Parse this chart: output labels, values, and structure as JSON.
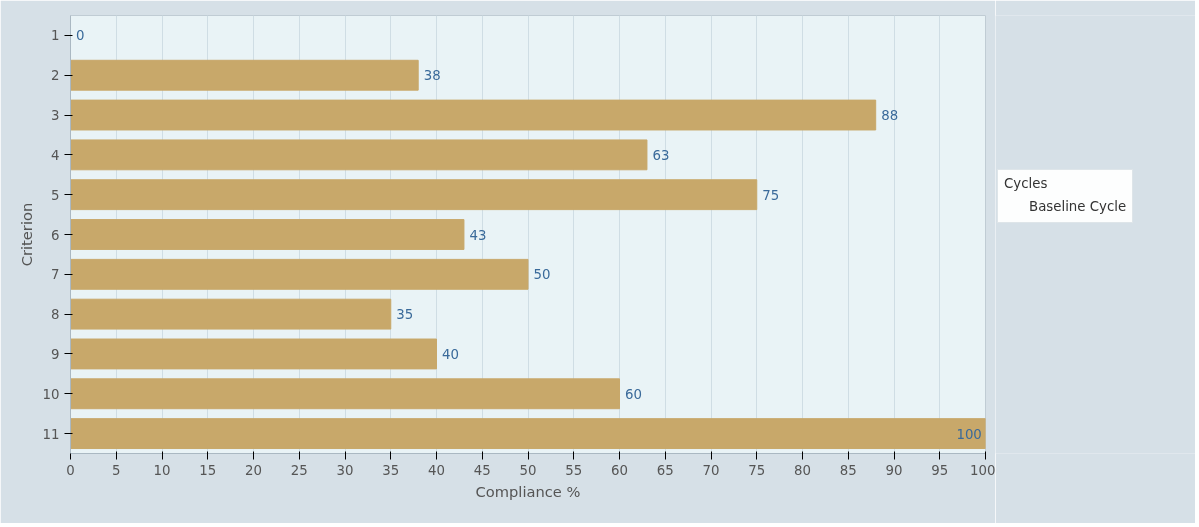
{
  "chart_data": {
    "type": "bar",
    "orientation": "horizontal",
    "xlabel": "Compliance %",
    "ylabel": "Criterion",
    "legend_title": "Cycles",
    "categories": [
      "1",
      "2",
      "3",
      "4",
      "5",
      "6",
      "7",
      "8",
      "9",
      "10",
      "11"
    ],
    "series": [
      {
        "name": "Baseline Cycle",
        "color": "#c8a86a",
        "values": [
          0,
          38,
          88,
          63,
          75,
          43,
          50,
          35,
          40,
          60,
          100
        ]
      }
    ],
    "xlim": [
      0,
      100
    ],
    "xticks": [
      0,
      5,
      10,
      15,
      20,
      25,
      30,
      35,
      40,
      45,
      50,
      55,
      60,
      65,
      70,
      75,
      80,
      85,
      90,
      95,
      100
    ],
    "grid": "x",
    "legend": "right",
    "data_labels": true
  }
}
